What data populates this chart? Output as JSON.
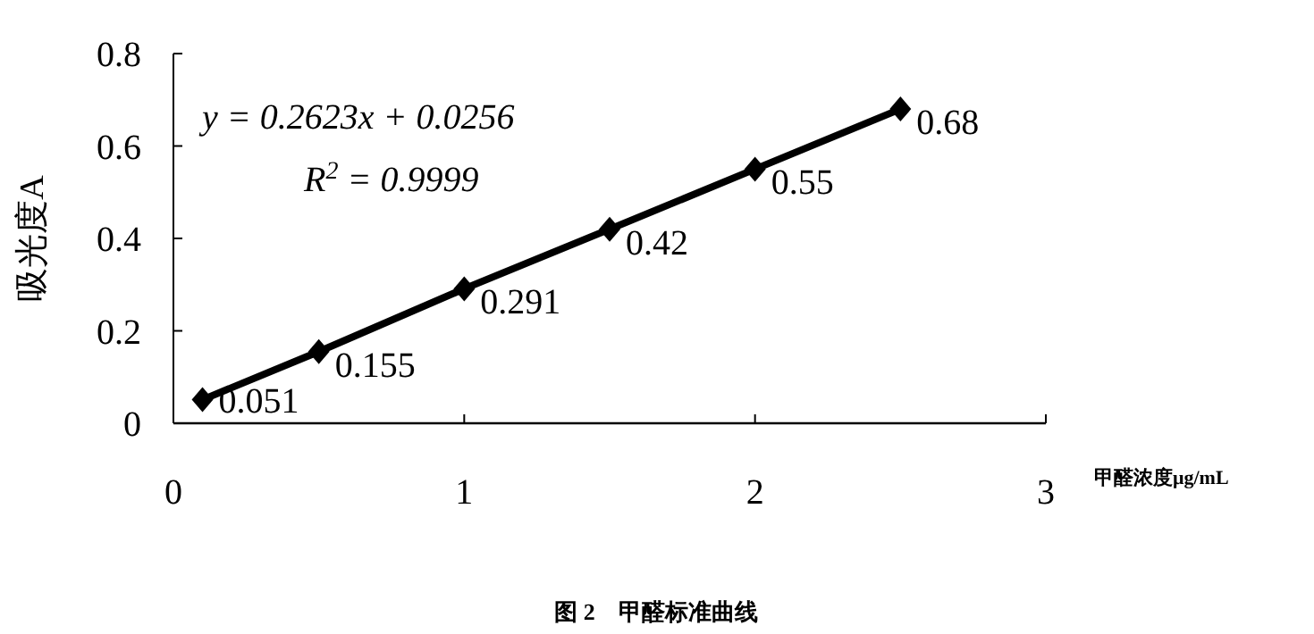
{
  "chart_data": {
    "type": "line",
    "title": "图 2　甲醛标准曲线",
    "xlabel": "甲醛浓度μg/mL",
    "ylabel": "吸光度A",
    "annotations": [
      "y = 0.2623x + 0.0256",
      "R$^{2}$ = 0.9999"
    ],
    "x": [
      0.1,
      0.5,
      1,
      1.5,
      2,
      2.5
    ],
    "series": [
      {
        "color": "#000000",
        "values": [
          0.051,
          0.155,
          0.291,
          0.42,
          0.55,
          0.68
        ]
      }
    ],
    "xlim": [
      0,
      3
    ],
    "xticks": [
      0,
      1,
      2,
      3
    ],
    "ylim": [
      0,
      0.8
    ],
    "yticks": [
      0,
      0.2,
      0.4,
      0.6,
      0.8
    ],
    "marker": "diamond",
    "line_style": "solid",
    "data_labels": true,
    "grid": false
  }
}
